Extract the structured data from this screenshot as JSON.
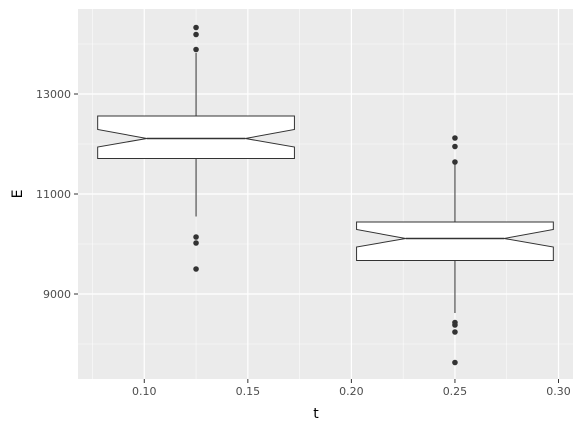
{
  "chart_data": {
    "type": "boxplot",
    "notched": true,
    "xlabel": "t",
    "ylabel": "E",
    "xlim": [
      0.068,
      0.307
    ],
    "ylim": [
      7300,
      14700
    ],
    "x_ticks": [
      0.1,
      0.15,
      0.2,
      0.25,
      0.3
    ],
    "x_tick_labels": [
      "0.10",
      "0.15",
      "0.20",
      "0.25",
      "0.30"
    ],
    "y_ticks": [
      9000,
      11000,
      13000
    ],
    "y_tick_labels": [
      "9000",
      "11000",
      "13000"
    ],
    "grid": true,
    "colors": {
      "panel_background": "#ebebeb",
      "grid_major": "#ffffff",
      "box_fill": "#ffffff",
      "box_stroke": "#333333",
      "outlier": "#333333",
      "tick_text": "#4d4d4d"
    },
    "boxes": [
      {
        "x": 0.125,
        "box_width": 0.095,
        "q1": 11710,
        "median": 12110,
        "q3": 12560,
        "notch_low": 11940,
        "notch_high": 12290,
        "whisker_low": 10550,
        "whisker_high": 13820,
        "outliers": [
          14330,
          14190,
          13890,
          10140,
          10020,
          9500
        ]
      },
      {
        "x": 0.25,
        "box_width": 0.095,
        "q1": 9670,
        "median": 10110,
        "q3": 10440,
        "notch_low": 9940,
        "notch_high": 10290,
        "whisker_low": 8620,
        "whisker_high": 11630,
        "outliers": [
          12120,
          11950,
          11640,
          8430,
          8380,
          8240,
          7630
        ]
      }
    ]
  }
}
